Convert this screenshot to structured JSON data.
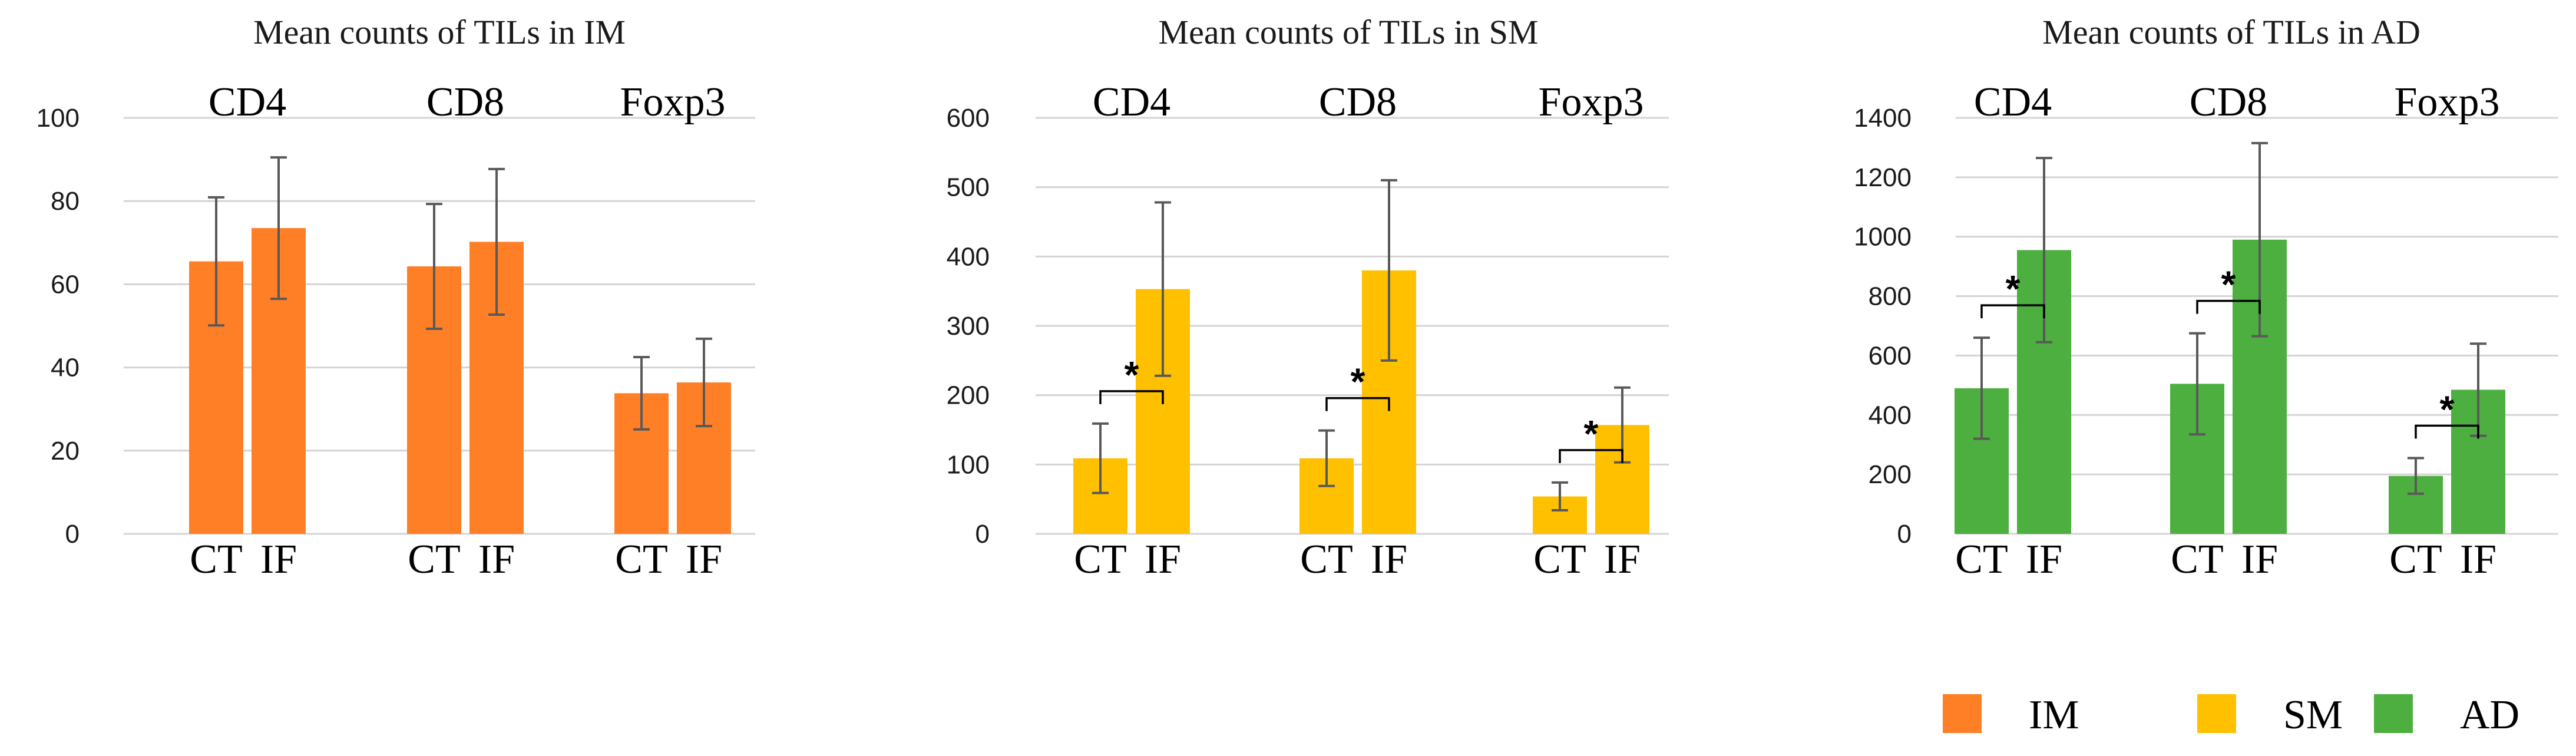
{
  "chart_data": [
    {
      "type": "bar",
      "title": "Mean counts of TILs in IM",
      "color": "#FF7F27",
      "groups": [
        "CD4",
        "CD8",
        "Foxp3"
      ],
      "categories": [
        "CT",
        "IF"
      ],
      "ylim": [
        0,
        100
      ],
      "yticks": [
        0,
        20,
        40,
        60,
        80,
        100
      ],
      "values": [
        [
          65.5,
          73.5
        ],
        [
          64.3,
          70.2
        ],
        [
          33.8,
          36.4
        ]
      ],
      "errors": [
        [
          15.4,
          17.0
        ],
        [
          15.0,
          17.5
        ],
        [
          8.7,
          10.5
        ]
      ],
      "significant": [
        false,
        false,
        false
      ],
      "grid": true
    },
    {
      "type": "bar",
      "title": "Mean counts of TILs in SM",
      "color": "#FFC000",
      "groups": [
        "CD4",
        "CD8",
        "Foxp3"
      ],
      "categories": [
        "CT",
        "IF"
      ],
      "ylim": [
        0,
        600
      ],
      "yticks": [
        0,
        100,
        200,
        300,
        400,
        500,
        600
      ],
      "values": [
        [
          109,
          353
        ],
        [
          109,
          380
        ],
        [
          54,
          157
        ]
      ],
      "errors": [
        [
          50,
          125
        ],
        [
          40,
          130
        ],
        [
          20,
          54
        ]
      ],
      "significant": [
        true,
        true,
        true
      ],
      "significance_label": "*",
      "grid": true
    },
    {
      "type": "bar",
      "title": "Mean counts of TILs in AD",
      "color": "#4CAF3F",
      "groups": [
        "CD4",
        "CD8",
        "Foxp3"
      ],
      "categories": [
        "CT",
        "IF"
      ],
      "ylim": [
        0,
        1400
      ],
      "yticks": [
        0,
        200,
        400,
        600,
        800,
        1000,
        1200,
        1400
      ],
      "values": [
        [
          490,
          955
        ],
        [
          505,
          990
        ],
        [
          195,
          485
        ]
      ],
      "errors": [
        [
          170,
          310
        ],
        [
          170,
          325
        ],
        [
          60,
          155
        ]
      ],
      "significant": [
        true,
        true,
        true
      ],
      "significance_label": "*",
      "grid": true
    }
  ],
  "legend": {
    "placement": "bottom-right",
    "items": [
      {
        "label": "IM",
        "color": "#FF7F27"
      },
      {
        "label": "SM",
        "color": "#FFC000"
      },
      {
        "label": "AD",
        "color": "#4CAF3F"
      }
    ]
  }
}
